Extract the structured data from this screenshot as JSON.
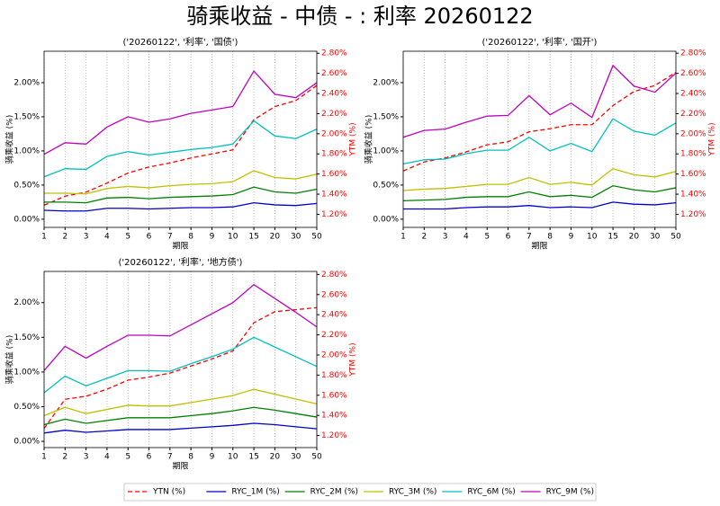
{
  "title": "骑乘收益 - 中债 - : 利率 20260122",
  "chart_data": [
    {
      "type": "line",
      "title": "('20260122', '利率', '国债')",
      "x_label": "期限",
      "y_label": "骑乘收益 (%)",
      "y2_label": "YTM (%)",
      "categories": [
        "1",
        "2",
        "3",
        "4",
        "5",
        "6",
        "7",
        "8",
        "9",
        "10",
        "15",
        "20",
        "30",
        "50"
      ],
      "grid": "x",
      "ylim": [
        -0.12,
        2.46
      ],
      "yticks": [
        {
          "value": 0,
          "label": "0.00%"
        },
        {
          "value": 0.5,
          "label": "0.50%"
        },
        {
          "value": 1,
          "label": "1.00%"
        },
        {
          "value": 1.5,
          "label": "1.50%"
        },
        {
          "value": 2,
          "label": "2.00%"
        }
      ],
      "y2lim": [
        1.07,
        2.82
      ],
      "y2ticks": [
        {
          "value": 1.2,
          "label": "1.20%"
        },
        {
          "value": 1.4,
          "label": "1.40%"
        },
        {
          "value": 1.6,
          "label": "1.60%"
        },
        {
          "value": 1.8,
          "label": "1.80%"
        },
        {
          "value": 2.0,
          "label": "2.00%"
        },
        {
          "value": 2.2,
          "label": "2.20%"
        },
        {
          "value": 2.4,
          "label": "2.40%"
        },
        {
          "value": 2.6,
          "label": "2.60%"
        },
        {
          "value": 2.8,
          "label": "2.80%"
        }
      ],
      "series": [
        {
          "name": "YTN (%)",
          "color": "#ff0000",
          "dashed": true,
          "axis": "y2",
          "values": [
            1.29,
            1.38,
            1.42,
            1.51,
            1.61,
            1.67,
            1.71,
            1.76,
            1.8,
            1.84,
            2.14,
            2.27,
            2.33,
            2.48
          ]
        },
        {
          "name": "RYC_1M (%)",
          "color": "#0000cc",
          "values": [
            0.13,
            0.12,
            0.12,
            0.16,
            0.16,
            0.15,
            0.16,
            0.17,
            0.17,
            0.18,
            0.24,
            0.21,
            0.2,
            0.23
          ]
        },
        {
          "name": "RYC_2M (%)",
          "color": "#008000",
          "values": [
            0.25,
            0.25,
            0.24,
            0.31,
            0.32,
            0.3,
            0.32,
            0.33,
            0.34,
            0.36,
            0.47,
            0.4,
            0.38,
            0.44
          ]
        },
        {
          "name": "RYC_3M (%)",
          "color": "#c0c000",
          "values": [
            0.38,
            0.38,
            0.37,
            0.45,
            0.48,
            0.46,
            0.49,
            0.51,
            0.52,
            0.55,
            0.71,
            0.61,
            0.59,
            0.66
          ]
        },
        {
          "name": "RYC_6M (%)",
          "color": "#00bfbf",
          "values": [
            0.62,
            0.74,
            0.73,
            0.92,
            0.99,
            0.94,
            0.98,
            1.02,
            1.05,
            1.1,
            1.44,
            1.22,
            1.18,
            1.32
          ]
        },
        {
          "name": "RYC_9M (%)",
          "color": "#bf00bf",
          "values": [
            0.95,
            1.12,
            1.1,
            1.35,
            1.5,
            1.42,
            1.47,
            1.55,
            1.6,
            1.65,
            2.17,
            1.83,
            1.78,
            2.0
          ]
        }
      ]
    },
    {
      "type": "line",
      "title": "('20260122', '利率', '国开')",
      "x_label": "期限",
      "y_label": "骑乘收益 (%)",
      "y2_label": "YTM (%)",
      "categories": [
        "1",
        "2",
        "3",
        "4",
        "5",
        "6",
        "7",
        "8",
        "9",
        "10",
        "15",
        "20",
        "30",
        "50"
      ],
      "grid": "x",
      "ylim": [
        -0.12,
        2.46
      ],
      "yticks": [
        {
          "value": 0,
          "label": "0.00%"
        },
        {
          "value": 0.5,
          "label": "0.50%"
        },
        {
          "value": 1,
          "label": "1.00%"
        },
        {
          "value": 1.5,
          "label": "1.50%"
        },
        {
          "value": 2,
          "label": "2.00%"
        }
      ],
      "y2lim": [
        1.07,
        2.82
      ],
      "y2ticks": [
        {
          "value": 1.2,
          "label": "1.20%"
        },
        {
          "value": 1.4,
          "label": "1.40%"
        },
        {
          "value": 1.6,
          "label": "1.60%"
        },
        {
          "value": 1.8,
          "label": "1.80%"
        },
        {
          "value": 2.0,
          "label": "2.00%"
        },
        {
          "value": 2.2,
          "label": "2.20%"
        },
        {
          "value": 2.4,
          "label": "2.40%"
        },
        {
          "value": 2.6,
          "label": "2.60%"
        },
        {
          "value": 2.8,
          "label": "2.80%"
        }
      ],
      "series": [
        {
          "name": "YTN (%)",
          "color": "#ff0000",
          "dashed": true,
          "axis": "y2",
          "values": [
            1.63,
            1.72,
            1.76,
            1.82,
            1.89,
            1.92,
            2.02,
            2.05,
            2.09,
            2.09,
            2.28,
            2.42,
            2.48,
            2.61
          ]
        },
        {
          "name": "RYC_1M (%)",
          "color": "#0000cc",
          "values": [
            0.15,
            0.15,
            0.15,
            0.17,
            0.18,
            0.18,
            0.2,
            0.17,
            0.18,
            0.17,
            0.25,
            0.22,
            0.21,
            0.24
          ]
        },
        {
          "name": "RYC_2M (%)",
          "color": "#008000",
          "values": [
            0.27,
            0.28,
            0.29,
            0.32,
            0.33,
            0.33,
            0.4,
            0.33,
            0.35,
            0.32,
            0.49,
            0.43,
            0.4,
            0.46
          ]
        },
        {
          "name": "RYC_3M (%)",
          "color": "#c0c000",
          "values": [
            0.42,
            0.44,
            0.45,
            0.48,
            0.51,
            0.51,
            0.61,
            0.51,
            0.54,
            0.5,
            0.74,
            0.65,
            0.62,
            0.7
          ]
        },
        {
          "name": "RYC_6M (%)",
          "color": "#00bfbf",
          "values": [
            0.81,
            0.87,
            0.88,
            0.96,
            1.01,
            1.01,
            1.2,
            1.0,
            1.11,
            0.99,
            1.47,
            1.29,
            1.23,
            1.41
          ]
        },
        {
          "name": "RYC_9M (%)",
          "color": "#bf00bf",
          "values": [
            1.2,
            1.3,
            1.32,
            1.42,
            1.51,
            1.52,
            1.81,
            1.53,
            1.7,
            1.49,
            2.25,
            1.95,
            1.86,
            2.14
          ]
        }
      ]
    },
    {
      "type": "line",
      "title": "('20260122', '利率', '地方债')",
      "x_label": "期限",
      "y_label": "骑乘收益 (%)",
      "y2_label": "YTM (%)",
      "categories": [
        "1",
        "2",
        "3",
        "4",
        "5",
        "6",
        "7",
        "8",
        "9",
        "10",
        "15",
        "20",
        "30",
        "50"
      ],
      "grid": "x",
      "ylim": [
        -0.09,
        2.45
      ],
      "yticks": [
        {
          "value": 0,
          "label": "0.00%"
        },
        {
          "value": 0.5,
          "label": "0.50%"
        },
        {
          "value": 1,
          "label": "1.00%"
        },
        {
          "value": 1.5,
          "label": "1.50%"
        },
        {
          "value": 2,
          "label": "2.00%"
        }
      ],
      "y2lim": [
        1.08,
        2.83
      ],
      "y2ticks": [
        {
          "value": 1.2,
          "label": "1.20%"
        },
        {
          "value": 1.4,
          "label": "1.40%"
        },
        {
          "value": 1.6,
          "label": "1.60%"
        },
        {
          "value": 1.8,
          "label": "1.80%"
        },
        {
          "value": 2.0,
          "label": "2.00%"
        },
        {
          "value": 2.2,
          "label": "2.20%"
        },
        {
          "value": 2.4,
          "label": "2.40%"
        },
        {
          "value": 2.6,
          "label": "2.60%"
        },
        {
          "value": 2.8,
          "label": "2.80%"
        }
      ],
      "series": [
        {
          "name": "YTN (%)",
          "color": "#ff0000",
          "dashed": true,
          "axis": "y2",
          "values": [
            1.27,
            1.56,
            1.59,
            1.66,
            1.75,
            1.78,
            1.82,
            1.89,
            1.96,
            2.04,
            2.32,
            2.43,
            2.45,
            2.47
          ]
        },
        {
          "name": "RYC_1M (%)",
          "color": "#0000cc",
          "values": [
            0.12,
            0.16,
            0.13,
            0.15,
            0.17,
            0.17,
            0.17,
            0.19,
            0.21,
            0.23,
            0.26,
            0.24,
            0.21,
            0.18
          ]
        },
        {
          "name": "RYC_2M (%)",
          "color": "#008000",
          "values": [
            0.24,
            0.32,
            0.26,
            0.3,
            0.34,
            0.34,
            0.34,
            0.37,
            0.4,
            0.44,
            0.49,
            0.45,
            0.4,
            0.35
          ]
        },
        {
          "name": "RYC_3M (%)",
          "color": "#c0c000",
          "values": [
            0.37,
            0.49,
            0.4,
            0.46,
            0.52,
            0.51,
            0.51,
            0.56,
            0.61,
            0.66,
            0.75,
            0.68,
            0.61,
            0.54
          ]
        },
        {
          "name": "RYC_6M (%)",
          "color": "#00bfbf",
          "values": [
            0.7,
            0.94,
            0.8,
            0.91,
            1.02,
            1.02,
            1.01,
            1.12,
            1.22,
            1.33,
            1.5,
            1.36,
            1.22,
            1.08
          ]
        },
        {
          "name": "RYC_9M (%)",
          "color": "#bf00bf",
          "values": [
            1.02,
            1.37,
            1.2,
            1.37,
            1.53,
            1.53,
            1.52,
            1.68,
            1.84,
            2.0,
            2.26,
            2.06,
            1.86,
            1.65
          ]
        }
      ]
    }
  ]
}
